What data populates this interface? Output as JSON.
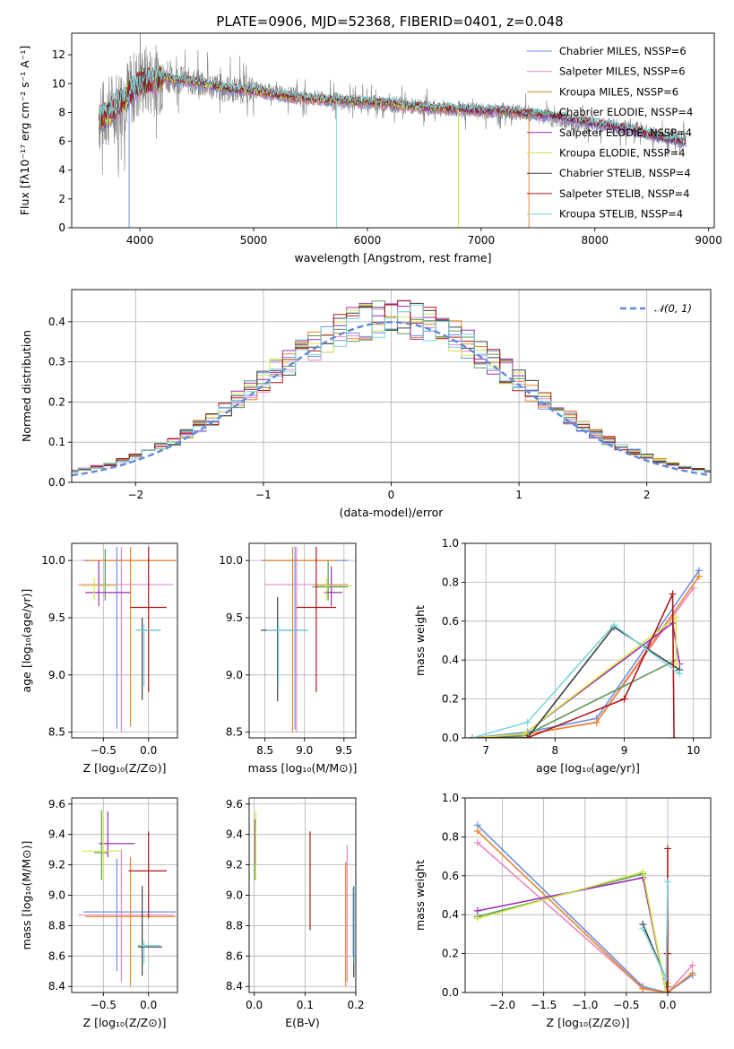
{
  "figure_title": "PLATE=0906, MJD=52368, FIBERID=0401, z=0.048",
  "sup_texts": [
    "SSP",
    "-17",
    "-2",
    "-1",
    "-1",
    "Z",
    "Z",
    "⊙",
    "M",
    "M",
    "⊙",
    "⊙",
    "⊙"
  ],
  "series": [
    {
      "name": "Chabrier MILES",
      "color": "#6a8ee8"
    },
    {
      "name": "Salpeter MILES",
      "color": "#e887c3"
    },
    {
      "name": "Kroupa MILES",
      "color": "#e8852a"
    },
    {
      "name": "Chabrier ELODIE",
      "color": "#5a9a5a"
    },
    {
      "name": "Salpeter ELODIE",
      "color": "#9a2fb0"
    },
    {
      "name": "Kroupa ELODIE",
      "color": "#d4e84a"
    },
    {
      "name": "Chabrier STELIB",
      "color": "#404040"
    },
    {
      "name": "Salpeter STELIB",
      "color": "#b01818"
    },
    {
      "name": "Kroupa STELIB",
      "color": "#7ad6dc"
    }
  ],
  "legend_suffix": [
    "N",
    "SSP",
    "=6",
    "=4"
  ],
  "chart_data": [
    {
      "id": "spectrum",
      "type": "line",
      "xlabel": "wavelength [Angstrom, rest frame]",
      "ylabel": "Flux [fλ10⁻¹⁷ erg cm⁻² s⁻¹ A⁻¹]",
      "xlim": [
        3400,
        9050
      ],
      "ylim": [
        0,
        13.5
      ],
      "xticks": [
        4000,
        5000,
        6000,
        7000,
        8000,
        9000
      ],
      "yticks": [
        0,
        2,
        4,
        6,
        8,
        10,
        12
      ],
      "legend": "top-right",
      "data_spectrum": {
        "x": [
          3640,
          3700,
          3800,
          3900,
          4000,
          4200,
          4400,
          4600,
          4800,
          5000,
          5200,
          5400,
          5600,
          5800,
          6000,
          6200,
          6400,
          6600,
          6800,
          7000,
          7200,
          7400,
          7600,
          7800,
          8000,
          8200,
          8400,
          8600,
          8800
        ],
        "y": [
          7.6,
          7.9,
          8.6,
          9.4,
          10.1,
          10.4,
          10.2,
          9.9,
          9.6,
          9.6,
          9.3,
          9.1,
          8.9,
          8.8,
          8.7,
          8.6,
          8.4,
          8.3,
          8.2,
          8.1,
          8.1,
          8.0,
          7.6,
          7.3,
          7.2,
          7.0,
          6.7,
          6.4,
          6.1
        ]
      },
      "model_spectrum": {
        "x": [
          3640,
          3700,
          3800,
          3900,
          4000,
          4200,
          4400,
          4600,
          4800,
          5000,
          5200,
          5400,
          5600,
          5800,
          6000,
          6200,
          6400,
          6600,
          6800,
          7000,
          7200,
          7400,
          7600,
          7800,
          8000,
          8200,
          8400,
          8600,
          8800
        ],
        "y": [
          7.5,
          7.8,
          8.5,
          9.2,
          10.1,
          10.4,
          10.2,
          9.9,
          9.6,
          9.5,
          9.2,
          9.0,
          8.9,
          8.8,
          8.7,
          8.6,
          8.4,
          8.3,
          8.2,
          8.1,
          8.1,
          7.9,
          7.8,
          7.5,
          7.2,
          7.0,
          6.6,
          6.2,
          5.9
        ]
      }
    },
    {
      "id": "residuals",
      "type": "line",
      "xlabel": "(data-model)/error",
      "ylabel": "Normed distribution",
      "xlim": [
        -2.5,
        2.5
      ],
      "ylim": [
        0,
        0.48
      ],
      "xticks": [
        -2,
        -1,
        0,
        1,
        2
      ],
      "yticks": [
        0.0,
        0.1,
        0.2,
        0.3,
        0.4
      ],
      "legend": "top-right",
      "normal_label": "𝒩(0, 1)",
      "normal_color": "#6189d8"
    },
    {
      "id": "age_vs_Z",
      "type": "scatter",
      "xlabel": "Z [log₁₀(Z/Z⊙)]",
      "ylabel": "age  [log₁₀(age/yr)]",
      "xlim": [
        -0.85,
        0.32
      ],
      "ylim": [
        8.45,
        10.15
      ],
      "xticks": [
        -0.5,
        0.0
      ],
      "yticks": [
        8.5,
        9.0,
        9.5,
        10.0
      ],
      "points": [
        {
          "s": 0,
          "x": -0.35,
          "y": 10.0,
          "xe": [
            -0.72,
            0.3
          ],
          "ye": [
            8.53,
            10.12
          ]
        },
        {
          "s": 1,
          "x": -0.3,
          "y": 9.79,
          "xe": [
            -0.78,
            0.28
          ],
          "ye": [
            8.5,
            10.12
          ]
        },
        {
          "s": 2,
          "x": -0.2,
          "y": 10.0,
          "xe": [
            -0.7,
            0.3
          ],
          "ye": [
            8.55,
            10.12
          ]
        },
        {
          "s": 3,
          "x": -0.48,
          "y": 9.78,
          "xe": [
            -0.55,
            -0.45
          ],
          "ye": [
            9.65,
            10.1
          ]
        },
        {
          "s": 4,
          "x": -0.55,
          "y": 9.72,
          "xe": [
            -0.7,
            -0.2
          ],
          "ye": [
            9.6,
            10.0
          ]
        },
        {
          "s": 5,
          "x": -0.6,
          "y": 9.78,
          "xe": [
            -0.75,
            -0.35
          ],
          "ye": [
            9.65,
            9.85
          ]
        },
        {
          "s": 6,
          "x": -0.07,
          "y": 9.39,
          "xe": [
            -0.13,
            0.12
          ],
          "ye": [
            8.78,
            9.5
          ]
        },
        {
          "s": 7,
          "x": 0.0,
          "y": 9.59,
          "xe": [
            -0.2,
            0.2
          ],
          "ye": [
            8.85,
            10.12
          ]
        },
        {
          "s": 8,
          "x": -0.05,
          "y": 9.39,
          "xe": [
            -0.15,
            0.14
          ],
          "ye": [
            8.9,
            9.45
          ]
        }
      ]
    },
    {
      "id": "age_vs_mass",
      "type": "scatter",
      "xlabel": "mass [log₁₀(M/M⊙)]",
      "ylabel": "",
      "xlim": [
        8.3,
        9.65
      ],
      "ylim": [
        8.45,
        10.15
      ],
      "xticks": [
        8.5,
        9.0,
        9.5
      ],
      "yticks": [
        8.5,
        9.0,
        9.5,
        10.0
      ],
      "points": [
        {
          "s": 0,
          "x": 8.88,
          "y": 10.0,
          "xe": [
            8.45,
            9.55
          ],
          "ye": [
            8.52,
            10.12
          ]
        },
        {
          "s": 1,
          "x": 8.9,
          "y": 9.79,
          "xe": [
            8.5,
            9.55
          ],
          "ye": [
            8.5,
            10.12
          ]
        },
        {
          "s": 2,
          "x": 8.85,
          "y": 10.0,
          "xe": [
            8.48,
            9.4
          ],
          "ye": [
            8.5,
            10.12
          ]
        },
        {
          "s": 3,
          "x": 9.3,
          "y": 9.77,
          "xe": [
            9.1,
            9.55
          ],
          "ye": [
            9.65,
            10.0
          ]
        },
        {
          "s": 4,
          "x": 9.34,
          "y": 9.72,
          "xe": [
            9.25,
            9.48
          ],
          "ye": [
            9.6,
            9.95
          ]
        },
        {
          "s": 5,
          "x": 9.28,
          "y": 9.78,
          "xe": [
            9.15,
            9.6
          ],
          "ye": [
            9.65,
            9.85
          ]
        },
        {
          "s": 6,
          "x": 8.66,
          "y": 9.39,
          "xe": [
            8.45,
            9.03
          ],
          "ye": [
            8.77,
            9.68
          ]
        },
        {
          "s": 7,
          "x": 9.15,
          "y": 9.59,
          "xe": [
            8.9,
            9.4
          ],
          "ye": [
            8.85,
            10.12
          ]
        },
        {
          "s": 8,
          "x": 8.67,
          "y": 9.39,
          "xe": [
            8.52,
            9.05
          ],
          "ye": [
            8.9,
            9.48
          ]
        }
      ]
    },
    {
      "id": "weight_vs_age",
      "type": "line",
      "xlabel": "age  [log₁₀(age/yr)]",
      "ylabel": "mass weight",
      "xlim": [
        6.7,
        10.25
      ],
      "ylim": [
        0,
        1.0
      ],
      "xticks": [
        7,
        8,
        9,
        10
      ],
      "yticks": [
        0.0,
        0.2,
        0.4,
        0.6,
        0.8,
        1.0
      ],
      "series_xy": [
        {
          "s": 0,
          "x": [
            6.8,
            7.6,
            8.6,
            10.08
          ],
          "y": [
            0.0,
            0.03,
            0.1,
            0.86
          ]
        },
        {
          "s": 1,
          "x": [
            6.8,
            7.6,
            8.6,
            10.0
          ],
          "y": [
            0.0,
            0.02,
            0.08,
            0.77
          ]
        },
        {
          "s": 2,
          "x": [
            6.8,
            7.6,
            8.6,
            10.08
          ],
          "y": [
            0.0,
            0.02,
            0.08,
            0.83
          ]
        },
        {
          "s": 3,
          "x": [
            6.8,
            7.55,
            9.75
          ],
          "y": [
            0.0,
            0.01,
            0.4
          ]
        },
        {
          "s": 4,
          "x": [
            6.8,
            7.55,
            9.7,
            9.8
          ],
          "y": [
            0.0,
            0.02,
            0.59,
            0.38
          ]
        },
        {
          "s": 5,
          "x": [
            6.8,
            7.55,
            9.75,
            9.75
          ],
          "y": [
            0.0,
            0.02,
            0.62,
            0.38
          ]
        },
        {
          "s": 6,
          "x": [
            6.8,
            7.6,
            8.85,
            9.8
          ],
          "y": [
            0.0,
            0.0,
            0.57,
            0.35
          ]
        },
        {
          "s": 7,
          "x": [
            6.8,
            7.6,
            9.0,
            9.7,
            9.72
          ],
          "y": [
            0.0,
            0.0,
            0.2,
            0.74,
            0.0
          ]
        },
        {
          "s": 8,
          "x": [
            6.8,
            7.6,
            8.85,
            9.8
          ],
          "y": [
            0.0,
            0.08,
            0.58,
            0.33
          ]
        }
      ]
    },
    {
      "id": "mass_vs_Z",
      "type": "scatter",
      "xlabel": "Z [log₁₀(Z/Z⊙)]",
      "ylabel": "mass [log₁₀(M/M⊙)]",
      "xlim": [
        -0.85,
        0.32
      ],
      "ylim": [
        8.36,
        9.64
      ],
      "xticks": [
        -0.5,
        0.0
      ],
      "yticks": [
        8.4,
        8.6,
        8.8,
        9.0,
        9.2,
        9.4,
        9.6
      ],
      "points": [
        {
          "s": 0,
          "x": -0.35,
          "y": 8.89,
          "xe": [
            -0.72,
            0.3
          ],
          "ye": [
            8.5,
            9.24
          ]
        },
        {
          "s": 1,
          "x": -0.3,
          "y": 8.87,
          "xe": [
            -0.78,
            0.28
          ],
          "ye": [
            8.43,
            9.3
          ]
        },
        {
          "s": 2,
          "x": -0.2,
          "y": 8.86,
          "xe": [
            -0.7,
            0.3
          ],
          "ye": [
            8.4,
            9.25
          ]
        },
        {
          "s": 3,
          "x": -0.52,
          "y": 9.28,
          "xe": [
            -0.6,
            -0.45
          ],
          "ye": [
            9.1,
            9.56
          ]
        },
        {
          "s": 4,
          "x": -0.45,
          "y": 9.34,
          "xe": [
            -0.55,
            -0.15
          ],
          "ye": [
            9.25,
            9.55
          ]
        },
        {
          "s": 5,
          "x": -0.5,
          "y": 9.29,
          "xe": [
            -0.73,
            -0.3
          ],
          "ye": [
            9.1,
            9.55
          ]
        },
        {
          "s": 6,
          "x": -0.07,
          "y": 8.66,
          "xe": [
            -0.12,
            0.15
          ],
          "ye": [
            8.47,
            9.06
          ]
        },
        {
          "s": 7,
          "x": 0.0,
          "y": 9.16,
          "xe": [
            -0.22,
            0.2
          ],
          "ye": [
            8.85,
            9.42
          ]
        },
        {
          "s": 8,
          "x": -0.05,
          "y": 8.67,
          "xe": [
            -0.12,
            0.13
          ],
          "ye": [
            8.55,
            8.7
          ]
        }
      ]
    },
    {
      "id": "mass_vs_EBV",
      "type": "scatter",
      "xlabel": "E(B-V)",
      "ylabel": "",
      "xlim": [
        -0.01,
        0.2
      ],
      "ylim": [
        8.36,
        9.64
      ],
      "xticks": [
        0.0,
        0.1,
        0.2
      ],
      "yticks": [
        8.4,
        8.6,
        8.8,
        9.0,
        9.2,
        9.4,
        9.6
      ],
      "points": [
        {
          "s": 0,
          "x": 0.195,
          "y": 8.89,
          "ye": [
            8.6,
            9.05
          ]
        },
        {
          "s": 1,
          "x": 0.183,
          "y": 8.88,
          "ye": [
            8.43,
            9.33
          ]
        },
        {
          "s": 2,
          "x": 0.18,
          "y": 8.86,
          "ye": [
            8.4,
            9.22
          ]
        },
        {
          "s": 3,
          "x": 0.001,
          "y": 9.28,
          "ye": [
            9.1,
            9.5
          ]
        },
        {
          "s": 4,
          "x": 0.002,
          "y": 9.34,
          "ye": [
            9.2,
            9.5
          ]
        },
        {
          "s": 5,
          "x": 0.003,
          "y": 9.3,
          "ye": [
            9.1,
            9.55
          ]
        },
        {
          "s": 6,
          "x": 0.196,
          "y": 8.66,
          "ye": [
            8.46,
            9.06
          ]
        },
        {
          "s": 7,
          "x": 0.11,
          "y": 9.16,
          "ye": [
            8.77,
            9.42
          ]
        },
        {
          "s": 8,
          "x": 0.197,
          "y": 8.67,
          "ye": [
            8.55,
            9.06
          ]
        }
      ]
    },
    {
      "id": "weight_vs_Z",
      "type": "line",
      "xlabel": "Z [log₁₀(Z/Z⊙)]",
      "ylabel": "mass weight",
      "xlim": [
        -2.45,
        0.52
      ],
      "ylim": [
        0,
        1.0
      ],
      "xticks": [
        -2.0,
        -1.5,
        -1.0,
        -0.5,
        0.0
      ],
      "yticks": [
        0.0,
        0.2,
        0.4,
        0.6,
        0.8,
        1.0
      ],
      "series_xy": [
        {
          "s": 0,
          "x": [
            -2.3,
            -0.3,
            0.0,
            0.3
          ],
          "y": [
            0.86,
            0.03,
            0.0,
            0.09
          ]
        },
        {
          "s": 1,
          "x": [
            -2.3,
            -0.3,
            0.0,
            0.3
          ],
          "y": [
            0.77,
            0.02,
            0.0,
            0.14
          ]
        },
        {
          "s": 2,
          "x": [
            -2.3,
            -0.3,
            0.0,
            0.3
          ],
          "y": [
            0.83,
            0.02,
            0.0,
            0.1
          ]
        },
        {
          "s": 3,
          "x": [
            -2.3,
            -0.3,
            -0.02,
            0.0
          ],
          "y": [
            0.39,
            0.61,
            0.0,
            0.03
          ]
        },
        {
          "s": 4,
          "x": [
            -2.3,
            -0.3,
            -0.02,
            0.0
          ],
          "y": [
            0.42,
            0.59,
            0.0,
            0.05
          ]
        },
        {
          "s": 5,
          "x": [
            -2.3,
            -0.3,
            -0.02,
            0.0
          ],
          "y": [
            0.38,
            0.62,
            0.0,
            0.05
          ]
        },
        {
          "s": 6,
          "x": [
            -0.3,
            -0.02,
            0.0
          ],
          "y": [
            0.35,
            0.07,
            0.0
          ]
        },
        {
          "s": 7,
          "x": [
            0.0,
            0.0,
            0.0
          ],
          "y": [
            0.74,
            0.2,
            0.0
          ]
        },
        {
          "s": 8,
          "x": [
            -0.3,
            -0.02,
            0.0
          ],
          "y": [
            0.33,
            0.07,
            0.57
          ]
        }
      ]
    }
  ]
}
